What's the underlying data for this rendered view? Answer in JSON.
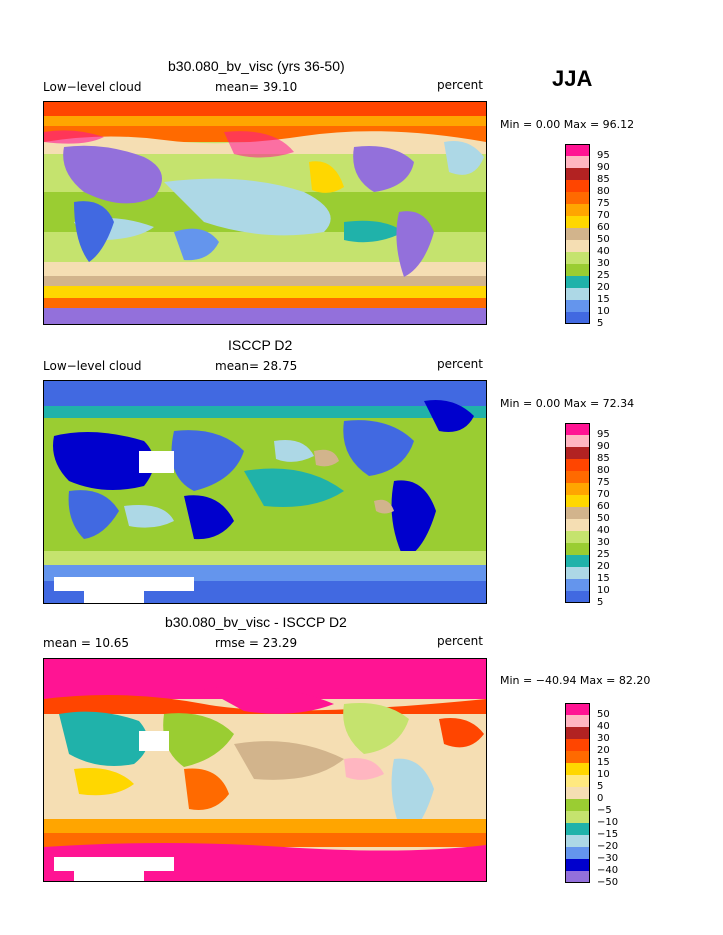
{
  "season": "JJA",
  "colors": [
    "#9370db",
    "#0000cd",
    "#4169e1",
    "#6495ed",
    "#add8e6",
    "#20b2aa",
    "#9acd32",
    "#c5e36e",
    "#f5deb3",
    "#d2b48c",
    "#ffd700",
    "#ffa500",
    "#ff6a00",
    "#ff4500",
    "#b22222",
    "#ffb6c1",
    "#ff1493"
  ],
  "panels": [
    {
      "id": "model",
      "title": "b30.080_bv_visc (yrs 36-50)",
      "left_label": "Low−level cloud",
      "mid_label": "mean=  39.10",
      "units": "percent",
      "stats": "Min =    0.00 Max =  96.12",
      "legend_labels": [
        "95",
        "90",
        "85",
        "80",
        "75",
        "70",
        "60",
        "50",
        "40",
        "30",
        "25",
        "20",
        "15",
        "10",
        "5"
      ]
    },
    {
      "id": "obs",
      "title": "ISCCP D2",
      "left_label": "Low−level cloud",
      "mid_label": "mean=  28.75",
      "units": "percent",
      "stats": "Min =    0.00 Max =  72.34",
      "legend_labels": [
        "95",
        "90",
        "85",
        "80",
        "75",
        "70",
        "60",
        "50",
        "40",
        "30",
        "25",
        "20",
        "15",
        "10",
        "5"
      ]
    },
    {
      "id": "diff",
      "title": "b30.080_bv_visc - ISCCP D2",
      "left_label": "mean =  10.65",
      "mid_label": "rmse =  23.29",
      "units": "percent",
      "stats": "Min = −40.94 Max =  82.20",
      "legend_labels": [
        "50",
        "40",
        "30",
        "20",
        "15",
        "10",
        "5",
        "0",
        "−5",
        "−10",
        "−15",
        "−20",
        "−30",
        "−40",
        "−50"
      ]
    }
  ]
}
